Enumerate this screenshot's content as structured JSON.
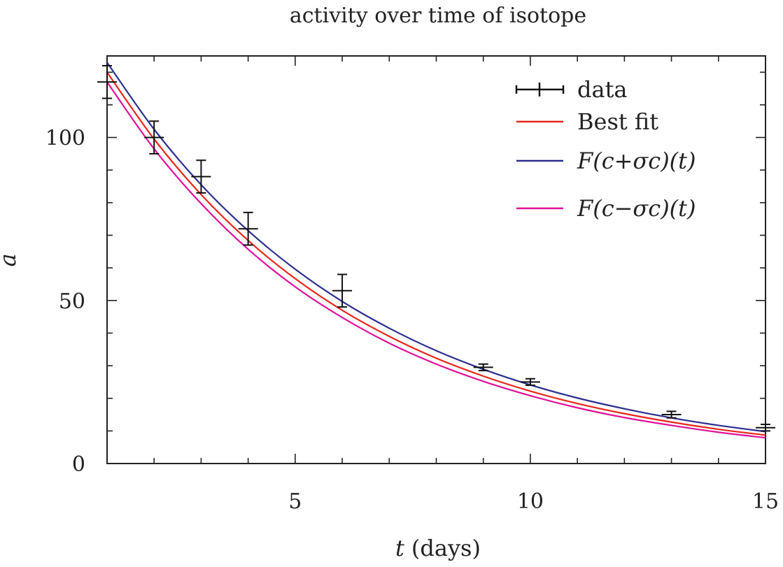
{
  "chart_data": {
    "type": "line",
    "title": "activity over time of isotope",
    "xlabel_var": "t",
    "xlabel_unit": "(days)",
    "ylabel": "a",
    "xlim": [
      1,
      15
    ],
    "ylim": [
      0,
      125
    ],
    "x_ticks": [
      5,
      10,
      15
    ],
    "y_ticks": [
      0,
      50,
      100
    ],
    "x_minor_step": 1,
    "y_minor_step": 10,
    "grid": false,
    "legend_position": "top-right",
    "data": {
      "name": "data",
      "color": "#111111",
      "points": [
        {
          "t": 1,
          "a": 117,
          "err": 5
        },
        {
          "t": 2,
          "a": 100,
          "err": 5
        },
        {
          "t": 3,
          "a": 88,
          "err": 5
        },
        {
          "t": 4,
          "a": 72,
          "err": 5
        },
        {
          "t": 6,
          "a": 53,
          "err": 5
        },
        {
          "t": 9,
          "a": 29.5,
          "err": 1
        },
        {
          "t": 10,
          "a": 25,
          "err": 1
        },
        {
          "t": 13,
          "a": 15,
          "err": 1
        },
        {
          "t": 15,
          "a": 11,
          "err": 1
        }
      ]
    },
    "series": [
      {
        "name": "Best fit",
        "color": "#e8261c",
        "x": [
          1,
          2,
          3,
          4,
          5,
          6,
          7,
          8,
          9,
          10,
          11,
          12,
          13,
          14,
          15
        ],
        "y": [
          120,
          99.5,
          82.5,
          68.4,
          56.7,
          47.0,
          39.0,
          32.3,
          26.8,
          22.2,
          18.4,
          15.3,
          12.7,
          10.5,
          8.7
        ]
      },
      {
        "name": "F(c+σc)(t)",
        "color": "#2b2f8e",
        "x": [
          1,
          2,
          3,
          4,
          5,
          6,
          7,
          8,
          9,
          10,
          11,
          12,
          13,
          14,
          15
        ],
        "y": [
          123,
          102.5,
          85.5,
          71.4,
          59.6,
          49.7,
          41.5,
          34.6,
          28.9,
          24.1,
          20.1,
          16.8,
          14.0,
          11.7,
          9.8
        ]
      },
      {
        "name": "F(c−σc)(t)",
        "color": "#e0119b",
        "x": [
          1,
          2,
          3,
          4,
          5,
          6,
          7,
          8,
          9,
          10,
          11,
          12,
          13,
          14,
          15
        ],
        "y": [
          117,
          96.5,
          79.7,
          65.7,
          54.2,
          44.8,
          36.9,
          30.5,
          25.2,
          20.8,
          17.1,
          14.1,
          11.7,
          9.6,
          7.9
        ]
      }
    ]
  }
}
